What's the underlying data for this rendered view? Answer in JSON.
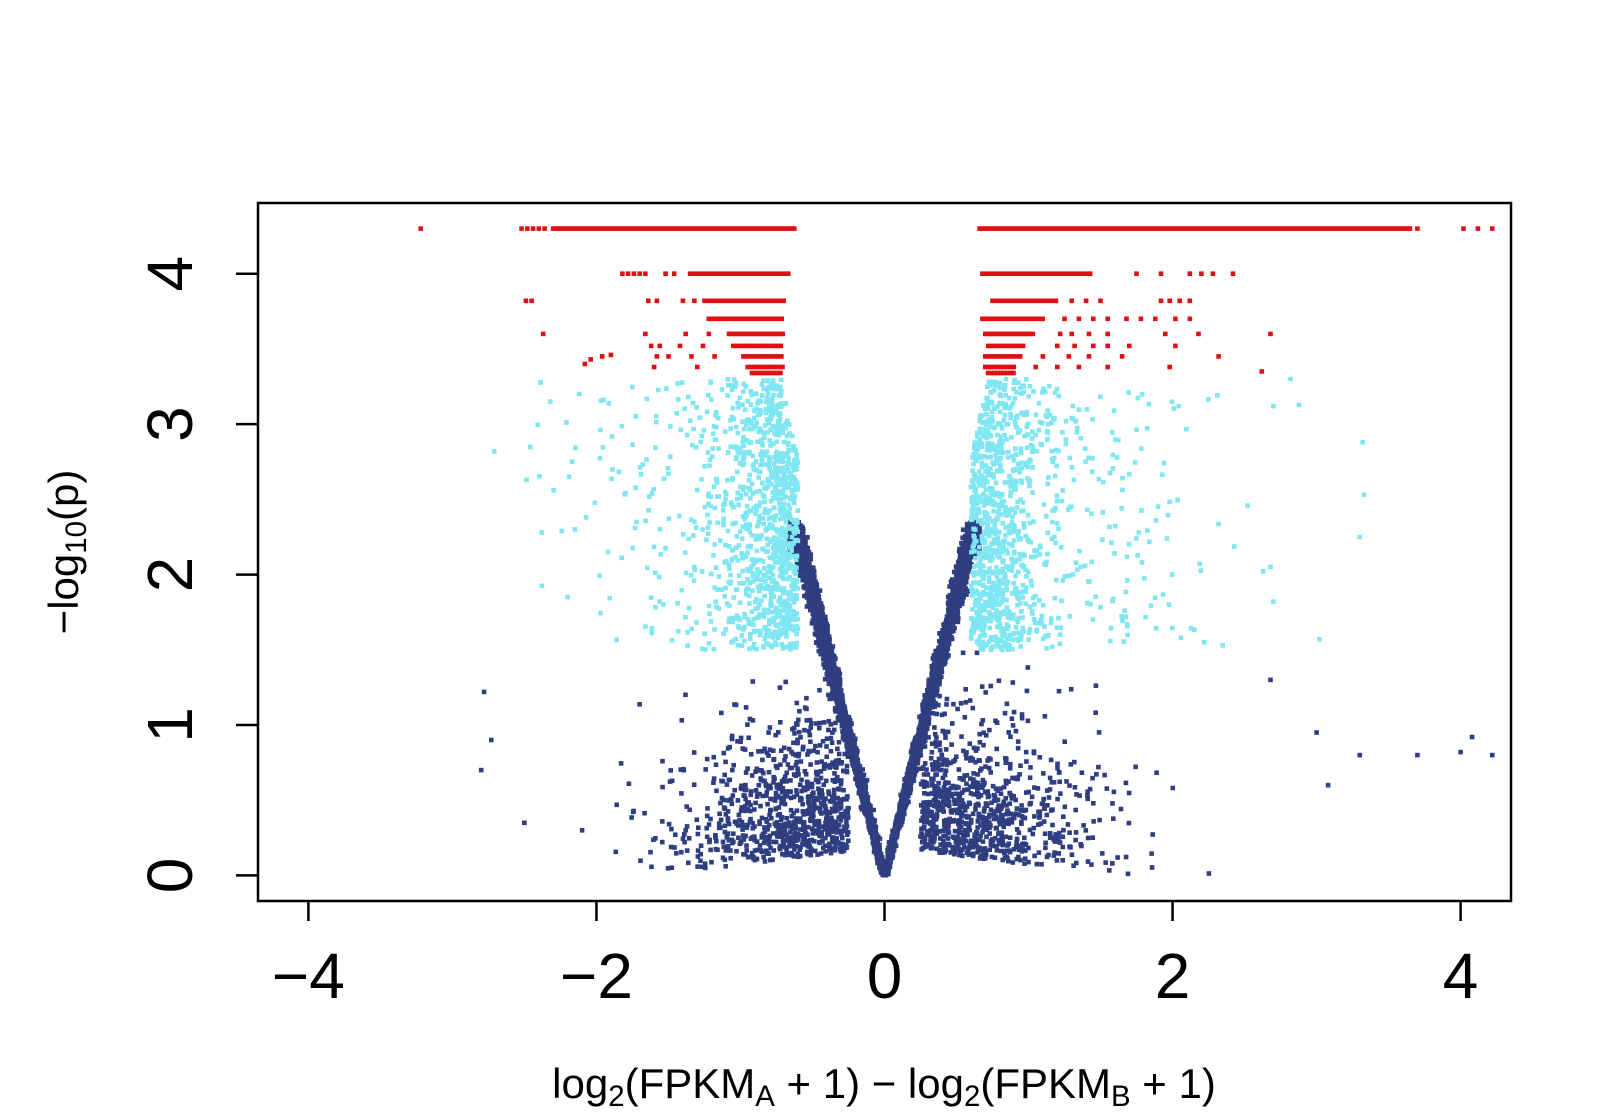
{
  "chart_data": {
    "type": "scatter",
    "title": "",
    "xlabel": {
      "parts": [
        {
          "t": "log"
        },
        {
          "t": "2",
          "sub": true
        },
        {
          "t": "(FPKM"
        },
        {
          "t": "A",
          "sub": true
        },
        {
          "t": " + 1) − log"
        },
        {
          "t": "2",
          "sub": true
        },
        {
          "t": "(FPKM"
        },
        {
          "t": "B",
          "sub": true
        },
        {
          "t": " + 1)"
        }
      ]
    },
    "ylabel": {
      "parts": [
        {
          "t": "−log"
        },
        {
          "t": "10",
          "sub": true
        },
        {
          "t": "(p)"
        }
      ]
    },
    "xlim": [
      -4.35,
      4.35
    ],
    "ylim": [
      -0.17,
      4.47
    ],
    "x_ticks": [
      -4,
      -2,
      0,
      2,
      4
    ],
    "x_tick_labels": [
      "−4",
      "−2",
      "0",
      "2",
      "4"
    ],
    "y_ticks": [
      0,
      1,
      2,
      3,
      4
    ],
    "y_tick_labels": [
      "0",
      "1",
      "2",
      "3",
      "4"
    ],
    "grid": false,
    "legend": "none",
    "series_colors": {
      "not_significant": "#2e3e80",
      "p_significant": "#7fe6f2",
      "q_significant": "#e01010"
    },
    "series_summary": {
      "not_significant": "dark blue points, V-shaped band from (0,0) out to |x|≈0.65 at y≈2.3, plus scattered points with y < 1.5",
      "p_significant": "light cyan points, 1.5 ≤ y ≤ 3.3 with |x| ≥ 0.6",
      "q_significant": "red points, y > 3.3 with |x| ≥ 0.6, dense row at y ≈ 4.3"
    },
    "series": [
      {
        "key": "q_significant",
        "points": [
          [
            -3.22,
            4.3
          ],
          [
            -2.52,
            4.3
          ],
          [
            -2.48,
            4.3
          ],
          [
            -2.44,
            4.3
          ],
          [
            -2.4,
            4.3
          ],
          [
            -2.36,
            4.3
          ],
          [
            -2.49,
            3.82
          ],
          [
            -2.45,
            3.82
          ],
          [
            -2.37,
            3.6
          ],
          [
            -2.08,
            3.4
          ],
          [
            -2.04,
            3.43
          ],
          [
            -1.96,
            3.45
          ],
          [
            -1.9,
            3.46
          ],
          [
            -1.82,
            4.0
          ],
          [
            -1.78,
            4.0
          ],
          [
            -1.74,
            4.0
          ],
          [
            -1.7,
            4.0
          ],
          [
            -1.66,
            4.0
          ],
          [
            -1.52,
            4.0
          ],
          [
            -1.46,
            4.0
          ],
          [
            -1.64,
            3.82
          ],
          [
            -1.58,
            3.82
          ],
          [
            -1.4,
            3.82
          ],
          [
            -1.32,
            3.82
          ],
          [
            -1.66,
            3.6
          ],
          [
            -1.62,
            3.52
          ],
          [
            -1.58,
            3.45
          ],
          [
            -1.6,
            3.38
          ],
          [
            -1.56,
            3.52
          ],
          [
            -1.5,
            3.45
          ],
          [
            -1.42,
            3.52
          ],
          [
            -1.38,
            3.6
          ],
          [
            -1.34,
            3.45
          ],
          [
            -1.3,
            3.38
          ],
          [
            -1.26,
            3.52
          ],
          [
            -1.22,
            3.6
          ],
          [
            -1.18,
            3.45
          ]
        ],
        "bands": [
          {
            "x0": -2.3,
            "x1": -0.62,
            "y": 4.3,
            "step": 0.018
          },
          {
            "x0": -1.35,
            "x1": -0.66,
            "y": 4.0,
            "step": 0.022
          },
          {
            "x0": -1.25,
            "x1": -0.68,
            "y": 3.82,
            "step": 0.022
          },
          {
            "x0": -1.22,
            "x1": -0.7,
            "y": 3.7,
            "step": 0.022
          },
          {
            "x0": -1.08,
            "x1": -0.7,
            "y": 3.6,
            "step": 0.022
          },
          {
            "x0": -1.05,
            "x1": -0.7,
            "y": 3.52,
            "step": 0.022
          },
          {
            "x0": -0.98,
            "x1": -0.7,
            "y": 3.45,
            "step": 0.022
          },
          {
            "x0": -0.95,
            "x1": -0.7,
            "y": 3.38,
            "step": 0.022
          },
          {
            "x0": -0.92,
            "x1": -0.7,
            "y": 3.34,
            "step": 0.022
          },
          {
            "x0": 0.66,
            "x1": 3.65,
            "y": 4.3,
            "step": 0.018
          },
          {
            "x0": 0.68,
            "x1": 1.45,
            "y": 4.0,
            "step": 0.022
          },
          {
            "x0": 0.75,
            "x1": 1.2,
            "y": 3.82,
            "step": 0.022
          },
          {
            "x0": 0.68,
            "x1": 1.1,
            "y": 3.7,
            "step": 0.022
          },
          {
            "x0": 0.7,
            "x1": 1.05,
            "y": 3.6,
            "step": 0.022
          },
          {
            "x0": 0.72,
            "x1": 0.98,
            "y": 3.52,
            "step": 0.022
          },
          {
            "x0": 0.7,
            "x1": 0.95,
            "y": 3.45,
            "step": 0.022
          },
          {
            "x0": 0.7,
            "x1": 0.92,
            "y": 3.38,
            "step": 0.022
          },
          {
            "x0": 0.72,
            "x1": 0.9,
            "y": 3.34,
            "step": 0.022
          }
        ],
        "extra": [
          [
            3.7,
            4.3
          ],
          [
            4.02,
            4.3
          ],
          [
            4.12,
            4.3
          ],
          [
            4.22,
            4.3
          ],
          [
            1.75,
            4.0
          ],
          [
            1.92,
            4.0
          ],
          [
            2.12,
            4.0
          ],
          [
            2.2,
            4.0
          ],
          [
            2.28,
            4.0
          ],
          [
            2.42,
            4.0
          ],
          [
            1.3,
            3.82
          ],
          [
            1.4,
            3.82
          ],
          [
            1.5,
            3.82
          ],
          [
            1.92,
            3.82
          ],
          [
            1.98,
            3.82
          ],
          [
            2.05,
            3.82
          ],
          [
            2.12,
            3.82
          ],
          [
            1.25,
            3.7
          ],
          [
            1.35,
            3.7
          ],
          [
            1.45,
            3.7
          ],
          [
            1.55,
            3.7
          ],
          [
            1.68,
            3.7
          ],
          [
            1.78,
            3.7
          ],
          [
            1.88,
            3.7
          ],
          [
            2.02,
            3.7
          ],
          [
            2.12,
            3.7
          ],
          [
            1.22,
            3.6
          ],
          [
            1.3,
            3.6
          ],
          [
            1.42,
            3.6
          ],
          [
            1.55,
            3.6
          ],
          [
            1.95,
            3.6
          ],
          [
            2.18,
            3.6
          ],
          [
            2.68,
            3.6
          ],
          [
            1.2,
            3.52
          ],
          [
            1.32,
            3.52
          ],
          [
            1.45,
            3.52
          ],
          [
            1.55,
            3.52
          ],
          [
            1.7,
            3.52
          ],
          [
            2.02,
            3.52
          ],
          [
            1.1,
            3.45
          ],
          [
            1.28,
            3.45
          ],
          [
            1.42,
            3.45
          ],
          [
            1.65,
            3.45
          ],
          [
            2.32,
            3.45
          ],
          [
            1.05,
            3.38
          ],
          [
            1.2,
            3.38
          ],
          [
            1.35,
            3.38
          ],
          [
            1.55,
            3.38
          ],
          [
            1.98,
            3.38
          ],
          [
            2.62,
            3.35
          ]
        ]
      }
    ]
  }
}
